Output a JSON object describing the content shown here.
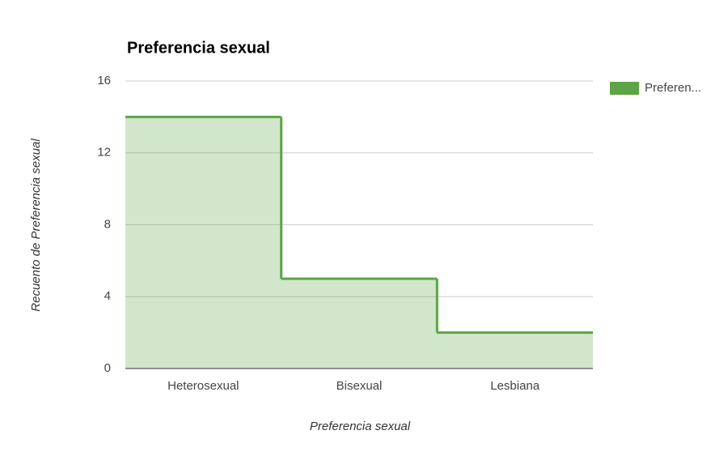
{
  "chart_data": {
    "type": "stepped-area",
    "title": "Preferencia sexual",
    "x_label": "Preferencia sexual",
    "y_label": "Recuento de Preferencia sexual",
    "categories": [
      "Heterosexual",
      "Bisexual",
      "Lesbiana"
    ],
    "series": [
      {
        "name": "Preferen...",
        "color": "#5ea446",
        "values": [
          14,
          5,
          2
        ]
      }
    ],
    "ylim": [
      0,
      16
    ],
    "yticks": [
      0,
      4,
      8,
      12,
      16
    ],
    "grid": true,
    "legend": "right"
  }
}
